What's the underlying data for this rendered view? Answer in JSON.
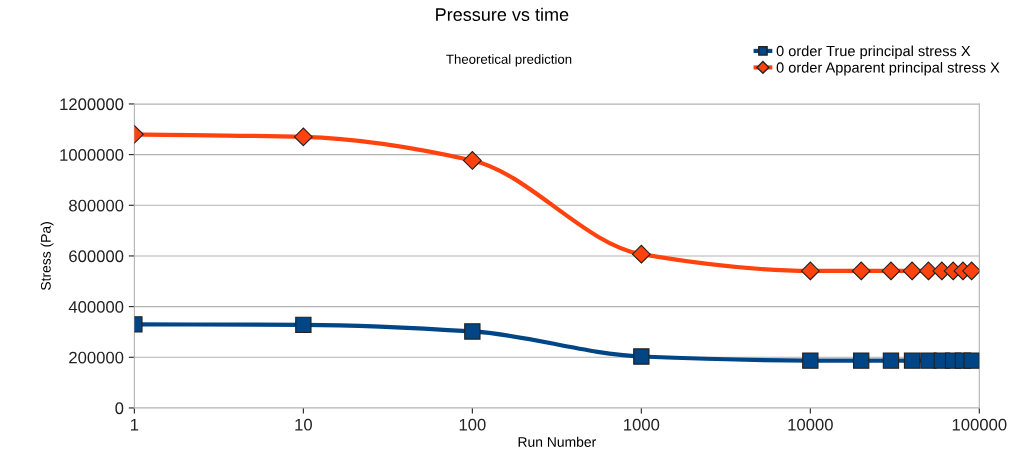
{
  "chart_data": {
    "type": "line",
    "title": "Pressure vs time",
    "subtitle": "Theoretical prediction",
    "xlabel": "Run Number",
    "ylabel": "Stress (Pa)",
    "x": [
      1,
      10,
      100,
      1000,
      10000,
      20000,
      30000,
      40000,
      50000,
      60000,
      70000,
      80000,
      90000
    ],
    "series": [
      {
        "name": "0 order True principal stress X",
        "color": "#004586",
        "marker": "square",
        "values": [
          330000,
          328000,
          302000,
          203000,
          187000,
          187000,
          187000,
          187000,
          187000,
          187000,
          187000,
          187000,
          187000
        ]
      },
      {
        "name": "0 order Apparent principal stress X",
        "color": "#ff420e",
        "marker": "diamond",
        "values": [
          1080000,
          1070000,
          977000,
          607000,
          541000,
          541000,
          541000,
          541000,
          541000,
          541000,
          541000,
          541000,
          541000
        ]
      }
    ],
    "log": "x",
    "xlim": [
      1,
      100000
    ],
    "xticks": [
      1,
      10,
      100,
      1000,
      10000,
      100000
    ],
    "ylim": [
      0,
      1200000
    ],
    "yticks": [
      0,
      200000,
      400000,
      600000,
      800000,
      1000000,
      1200000
    ],
    "grid": "y",
    "legend": "top right"
  }
}
